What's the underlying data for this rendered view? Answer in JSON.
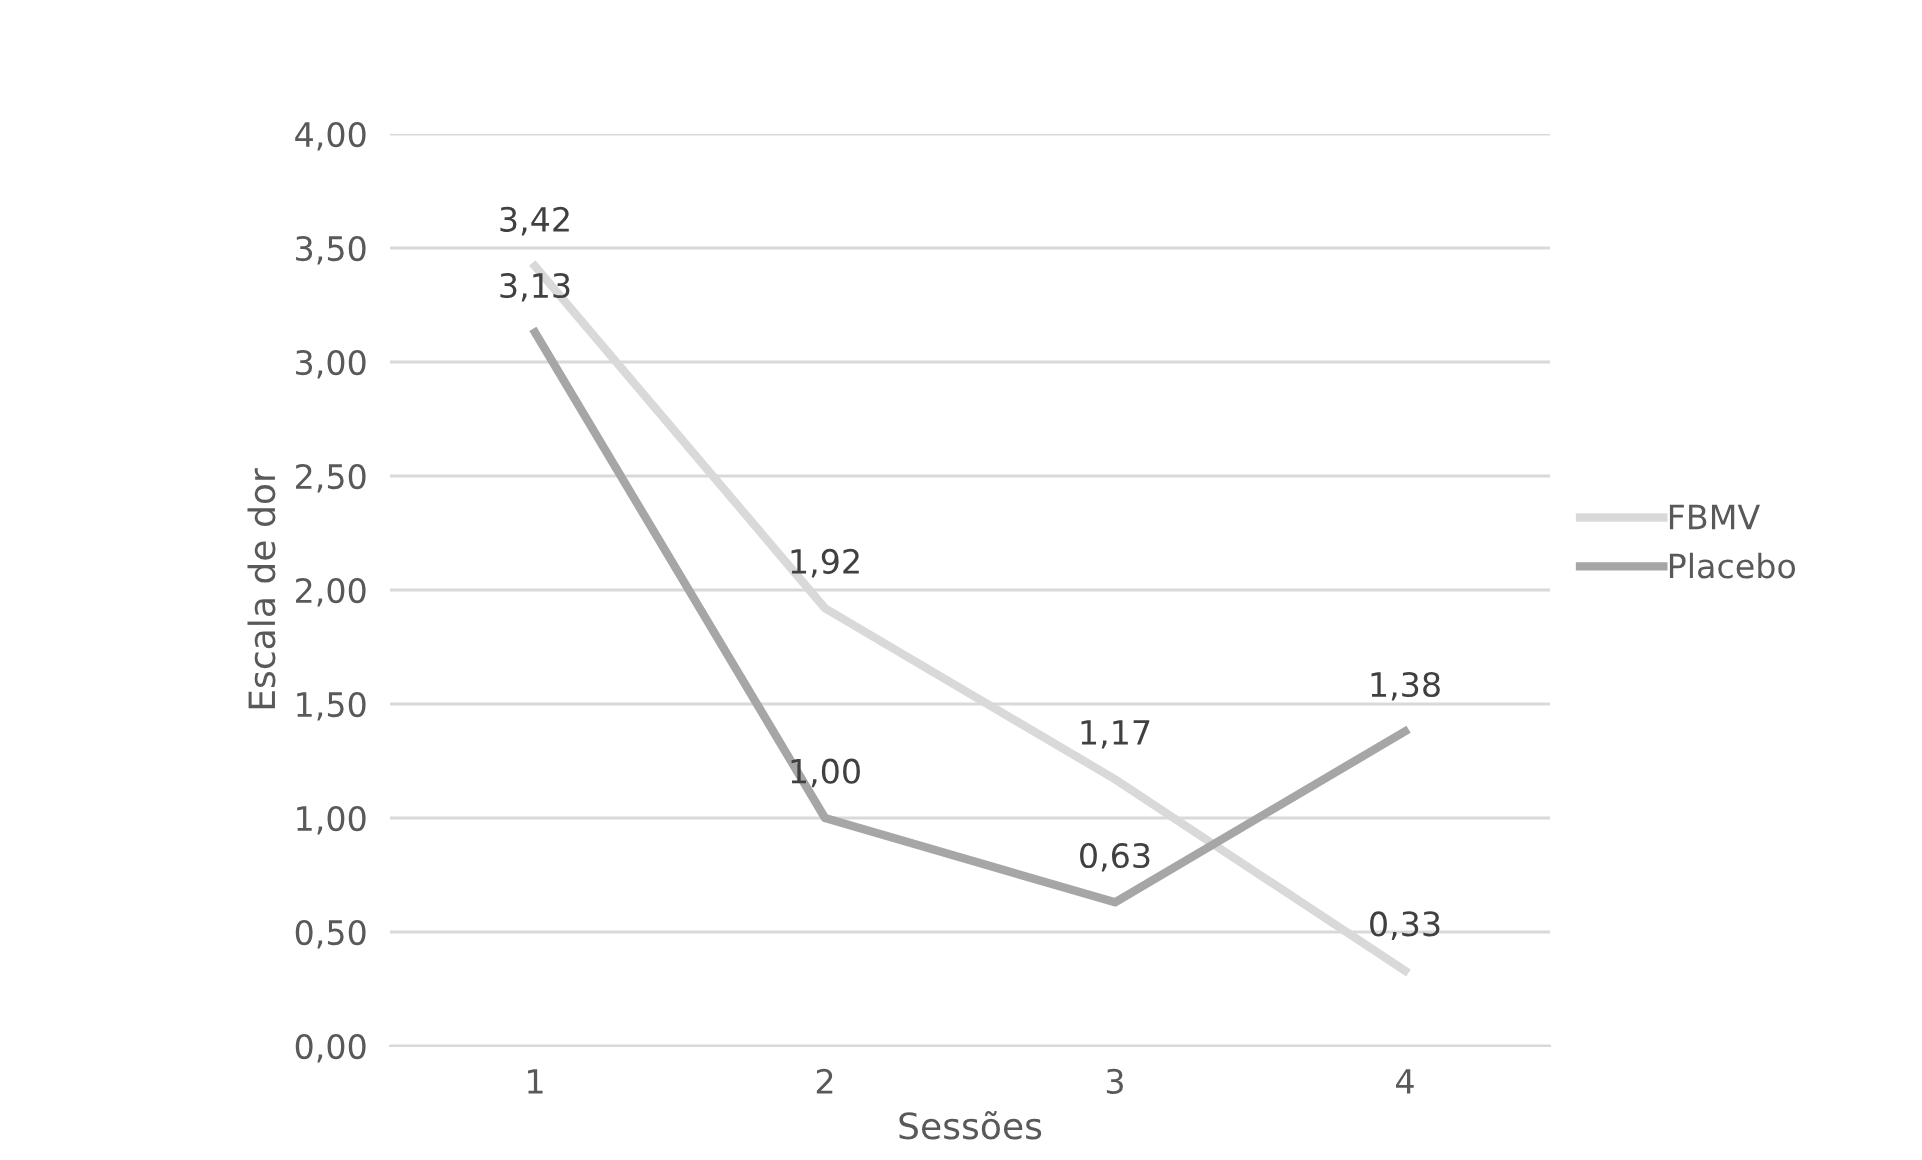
{
  "chart_data": {
    "type": "line",
    "xlabel": "Sessões",
    "ylabel": "Escala de dor",
    "categories": [
      "1",
      "2",
      "3",
      "4"
    ],
    "series": [
      {
        "name": "FBMV",
        "color": "#d9d9d9",
        "values": [
          3.42,
          1.92,
          1.17,
          0.33
        ],
        "value_labels": [
          "3,42",
          "1,92",
          "1,17",
          "0,33"
        ]
      },
      {
        "name": "Placebo",
        "color": "#a6a6a6",
        "values": [
          3.13,
          1.0,
          0.63,
          1.38
        ],
        "value_labels": [
          "3,13",
          "1,00",
          "0,63",
          "1,38"
        ]
      }
    ],
    "ylim": [
      0,
      4
    ],
    "yticks": [
      {
        "value": 0,
        "label": "0,00"
      },
      {
        "value": 0.5,
        "label": "0,50"
      },
      {
        "value": 1,
        "label": "1,00"
      },
      {
        "value": 1.5,
        "label": "1,50"
      },
      {
        "value": 2,
        "label": "2,00"
      },
      {
        "value": 2.5,
        "label": "2,50"
      },
      {
        "value": 3,
        "label": "3,00"
      },
      {
        "value": 3.5,
        "label": "3,50"
      },
      {
        "value": 4,
        "label": "4,00"
      }
    ],
    "grid": "y",
    "legend": "right",
    "marker": "none",
    "line_style": "solid"
  }
}
